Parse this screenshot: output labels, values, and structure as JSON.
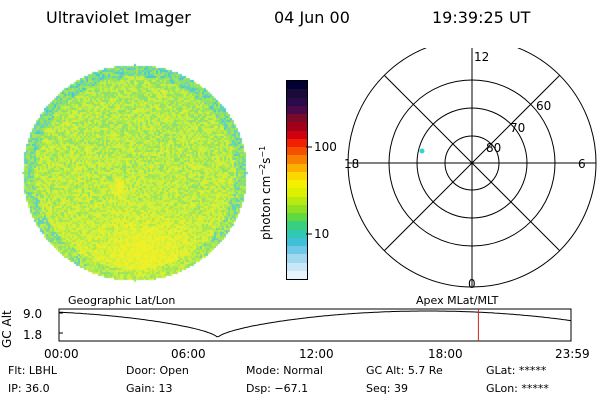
{
  "header": {
    "instrument": "Ultraviolet Imager",
    "date": "04 Jun 00",
    "time": "19:39:25 UT"
  },
  "colorbar": {
    "unit_label": "photon cm",
    "unit_exp1": "−2",
    "unit_mid": "s",
    "unit_exp2": "−1",
    "tick_high": "100",
    "tick_low": "10",
    "colors": [
      "#000033",
      "#1a0a3a",
      "#2a0a4a",
      "#4a0a4a",
      "#7a0a2a",
      "#a00018",
      "#d00010",
      "#f02000",
      "#f55000",
      "#f88000",
      "#fbb000",
      "#fbd800",
      "#f5f000",
      "#dcf000",
      "#b8ea10",
      "#8fe020",
      "#60d840",
      "#38d080",
      "#30c8b0",
      "#40c0d8",
      "#70c8e8",
      "#a0d8f0",
      "#c8e8f8",
      "#e8f4fc"
    ]
  },
  "polar": {
    "mlt_top": "12",
    "mlt_bottom": "0",
    "mlt_left": "18",
    "mlt_right": "6",
    "lat_60": "60",
    "lat_70": "70",
    "lat_80": "80"
  },
  "track": {
    "ylabel": "GC Alt",
    "y_high": "9.0",
    "y_low": "1.8",
    "left_title": "Geographic Lat/Lon",
    "right_title": "Apex MLat/MLT",
    "x_ticks": [
      "00:00",
      "06:00",
      "12:00",
      "18:00",
      "23:59"
    ],
    "current_time_fraction": 0.8191
  },
  "footer": {
    "flt_label": "Flt:",
    "flt_value": "LBHL",
    "ip_label": "IP:",
    "ip_value": "36.0",
    "door_label": "Door:",
    "door_value": "Open",
    "gain_label": "Gain:",
    "gain_value": "13",
    "mode_label": "Mode:",
    "mode_value": "Normal",
    "dsp_label": "Dsp:",
    "dsp_value": "−67.1",
    "gcalt_label": "GC Alt:",
    "gcalt_value": "5.7 Re",
    "seq_label": "Seq:",
    "seq_value": "39",
    "glat_label": "GLat:",
    "glat_value": "*****",
    "glon_label": "GLon:",
    "glon_value": "*****"
  }
}
